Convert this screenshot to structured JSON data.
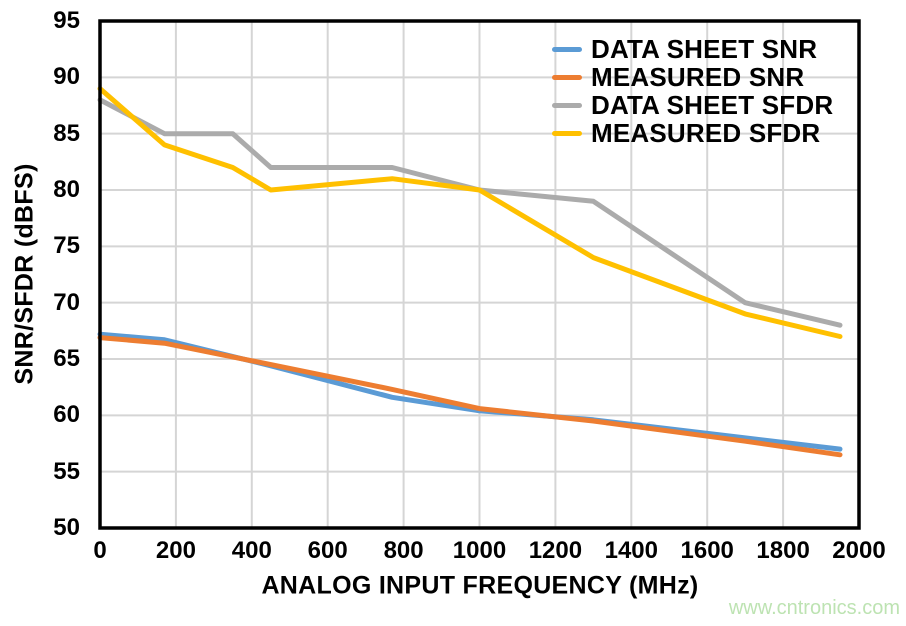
{
  "colors": {
    "grid": "#D5D5D5",
    "frame": "#000000",
    "watermark": "#BDE3B2"
  },
  "watermark_text": "www.cntronics.com",
  "chart_data": {
    "type": "line",
    "title": "",
    "xlabel": "ANALOG INPUT FREQUENCY (MHz)",
    "ylabel": "SNR/SFDR (dBFS)",
    "xlim": [
      0,
      2000
    ],
    "ylim": [
      50,
      95
    ],
    "x_ticks": [
      0,
      200,
      400,
      600,
      800,
      1000,
      1200,
      1400,
      1600,
      1800,
      2000
    ],
    "y_ticks": [
      50,
      55,
      60,
      65,
      70,
      75,
      80,
      85,
      90,
      95
    ],
    "grid": true,
    "legend_position": "top-right-inside",
    "line_width": 5,
    "series": [
      {
        "name": "DATA SHEET SNR",
        "color": "#5B9BD5",
        "x": [
          0,
          170,
          450,
          770,
          1000,
          1300,
          1700,
          1950
        ],
        "y": [
          67.2,
          66.7,
          64.4,
          61.6,
          60.4,
          59.6,
          58.0,
          57.0
        ]
      },
      {
        "name": "MEASURED SNR",
        "color": "#ED7D31",
        "x": [
          0,
          170,
          450,
          770,
          1000,
          1300,
          1700,
          1950
        ],
        "y": [
          66.9,
          66.4,
          64.5,
          62.3,
          60.6,
          59.5,
          57.7,
          56.5
        ]
      },
      {
        "name": "DATA SHEET SFDR",
        "color": "#ABABAB",
        "x": [
          0,
          170,
          350,
          450,
          770,
          1000,
          1300,
          1700,
          1950
        ],
        "y": [
          88,
          85,
          85,
          82,
          82,
          80,
          79,
          70,
          68
        ]
      },
      {
        "name": "MEASURED SFDR",
        "color": "#FFC000",
        "x": [
          0,
          170,
          350,
          450,
          770,
          1000,
          1300,
          1700,
          1950
        ],
        "y": [
          89,
          84,
          82,
          80,
          81,
          80,
          74,
          69,
          67
        ]
      }
    ]
  }
}
